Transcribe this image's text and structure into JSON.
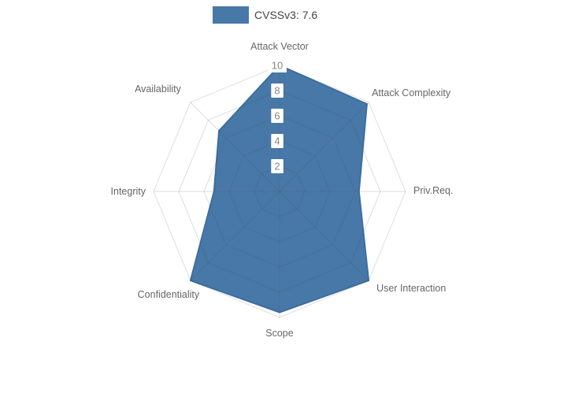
{
  "legend": {
    "label": "CVSSv3: 7.6",
    "swatch_color": "#4878a8"
  },
  "chart_data": {
    "type": "radar",
    "title": "",
    "categories": [
      "Attack Vector",
      "Attack Complexity",
      "Priv.Req.",
      "User Interaction",
      "Scope",
      "Confidentiality",
      "Integrity",
      "Availability"
    ],
    "series": [
      {
        "name": "CVSSv3: 7.6",
        "values": [
          10,
          9.8,
          6.3,
          10,
          9.6,
          10,
          5.2,
          6.8
        ]
      }
    ],
    "range": [
      0,
      10
    ],
    "radial_ticks": [
      2,
      4,
      6,
      8,
      10
    ],
    "grid_shape": "polygon",
    "legend_position": "top-center",
    "colors": {
      "fill": "#4878a8",
      "outline": "#3c6e9f",
      "grid": "rgba(70,70,70,0.18)",
      "axis_label": "#666666",
      "tick_label": "#868686",
      "tick_bg": "#ffffff"
    }
  }
}
